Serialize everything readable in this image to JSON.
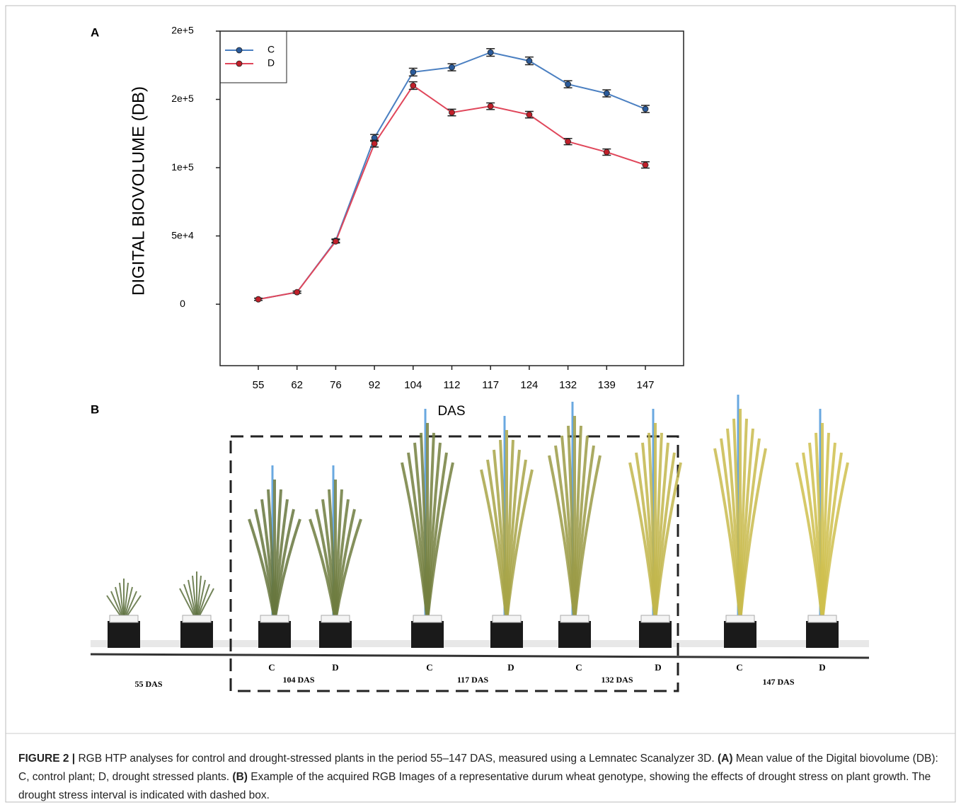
{
  "panels": [
    "A",
    "B"
  ],
  "chart_data": {
    "type": "line",
    "ylabel": "DIGITAL BIOVOLUME (DB)",
    "xlabel": "DAS",
    "categories": [
      "55",
      "62",
      "76",
      "92",
      "104",
      "112",
      "117",
      "124",
      "132",
      "139",
      "147"
    ],
    "series": [
      {
        "name": "C",
        "color": "#4a7fc1",
        "marker_color": "#2a5a9a",
        "values": [
          3600,
          8800,
          46600,
          121800,
          170000,
          173500,
          184400,
          178200,
          161100,
          154400,
          143000
        ],
        "errors": [
          800,
          800,
          1200,
          2500,
          2800,
          2600,
          2800,
          2800,
          2600,
          2600,
          2600
        ]
      },
      {
        "name": "D",
        "color": "#e0465a",
        "marker_color": "#c0202a",
        "values": [
          3600,
          8800,
          46000,
          117600,
          160100,
          140400,
          145000,
          138800,
          119100,
          111400,
          102000
        ],
        "errors": [
          800,
          800,
          1200,
          2500,
          2800,
          2400,
          2400,
          2400,
          2300,
          2300,
          2300
        ]
      }
    ],
    "ylim": [
      -45000,
      200000
    ],
    "yticks": [
      0,
      {
        "value": 50000,
        "label": "5e+4"
      },
      {
        "value": 100000,
        "label": "1e+5"
      },
      {
        "value": 150000,
        "label": "2e+5"
      },
      {
        "value": 200000,
        "label": "2e+5"
      }
    ],
    "legend": "upper left",
    "grid": false
  },
  "photo": {
    "time_labels": [
      "55 DAS",
      "104 DAS",
      "117 DAS",
      "132 DAS",
      "147 DAS"
    ],
    "plant_labels": [
      "C",
      "D",
      "C",
      "D",
      "C",
      "D",
      "C",
      "D"
    ]
  },
  "caption": {
    "label": "FIGURE 2 |",
    "text1": " RGB HTP analyses for control and drought-stressed plants in the period 55–147 DAS, measured using a Lemnatec Scanalyzer 3D. ",
    "a": "(A)",
    "text2": " Mean value of the Digital biovolume (DB): C, control plant; D, drought stressed plants. ",
    "b": "(B)",
    "text3": " Example of the acquired RGB Images of a representative durum wheat genotype, showing the effects of drought stress on plant growth. The drought stress interval is indicated with dashed box."
  }
}
